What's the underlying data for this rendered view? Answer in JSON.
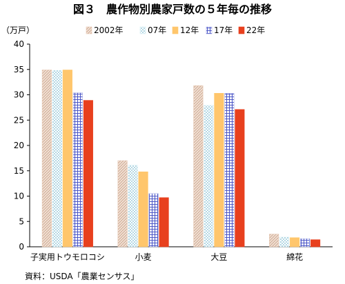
{
  "chart_data": {
    "type": "bar",
    "title": "図３　農作物別農家戸数の５年毎の推移",
    "ylabel": "（万戸）",
    "ylim": [
      0,
      40
    ],
    "yticks": [
      0,
      5,
      10,
      15,
      20,
      25,
      30,
      35,
      40
    ],
    "categories": [
      "子実用トウモロコシ",
      "小麦",
      "大豆",
      "綿花"
    ],
    "series": [
      {
        "name": "2002年",
        "values": [
          34.9,
          17.0,
          31.8,
          2.5
        ]
      },
      {
        "name": "07年",
        "values": [
          34.8,
          16.1,
          27.9,
          1.9
        ]
      },
      {
        "name": "12年",
        "values": [
          34.9,
          14.8,
          30.3,
          1.8
        ]
      },
      {
        "name": "17年",
        "values": [
          30.4,
          10.5,
          30.3,
          1.6
        ]
      },
      {
        "name": "22年",
        "values": [
          28.9,
          9.7,
          27.1,
          1.4
        ]
      }
    ],
    "legend_position": "top",
    "grid": false,
    "source": "資料：USDA「農業センサス」"
  },
  "colors": {
    "s2002": "#e6c6b1",
    "s07": "#d6eef4",
    "s12": "#ffc76b",
    "s17": "#aab0e6",
    "s22": "#e8401e"
  }
}
